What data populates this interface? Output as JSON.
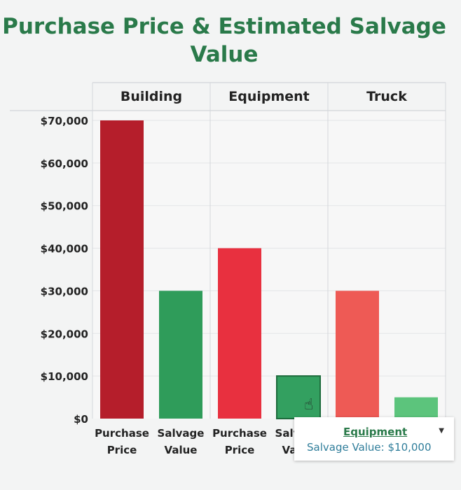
{
  "chart_data": {
    "type": "bar",
    "title": "Purchase Price & Estimated Salvage Value",
    "facets": [
      "Building",
      "Equipment",
      "Truck"
    ],
    "categories": [
      "Purchase Price",
      "Salvage Value"
    ],
    "values": [
      [
        70000,
        30000
      ],
      [
        40000,
        10000
      ],
      [
        30000,
        5000
      ]
    ],
    "colors": {
      "Building": [
        "#b51e2b",
        "#2f9c5a"
      ],
      "Equipment": [
        "#e8303f",
        "#33a060"
      ],
      "Truck": [
        "#ee5a55",
        "#5cc47c"
      ]
    },
    "ylim": [
      0,
      70000
    ],
    "yticks": [
      "$0",
      "$10,000",
      "$20,000",
      "$30,000",
      "$40,000",
      "$50,000",
      "$60,000",
      "$70,000"
    ],
    "grid": true,
    "legend": "none"
  },
  "tooltip": {
    "title": "Equipment",
    "body": "Salvage Value: $10,000",
    "arrow_icon": "caret-down-icon",
    "behind_text": "V"
  },
  "cursor_icon": "hand-pointer-icon"
}
